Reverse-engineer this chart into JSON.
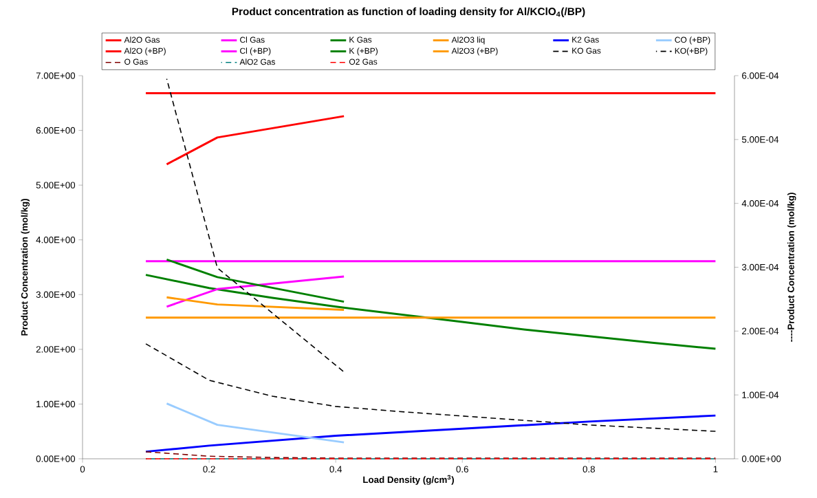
{
  "chart_data": {
    "type": "line",
    "title": "Product concentration as function of loading density for Al/KClO$_{4}$(/BP)",
    "xlabel": "Load Density (g/cm$^{3}$)",
    "ylabel": "Product Concentration (mol/kg)",
    "y2label": "----Product Concentration (mol/kg)",
    "xlim": [
      0,
      1.03
    ],
    "xticks": [
      0,
      0.2,
      0.4,
      0.6,
      0.8,
      1
    ],
    "ylim": [
      0,
      7
    ],
    "yticks": [
      {
        "value": 0,
        "label": "0.00E+00"
      },
      {
        "value": 1,
        "label": "1.00E+00"
      },
      {
        "value": 2,
        "label": "2.00E+00"
      },
      {
        "value": 3,
        "label": "3.00E+00"
      },
      {
        "value": 4,
        "label": "4.00E+00"
      },
      {
        "value": 5,
        "label": "5.00E+00"
      },
      {
        "value": 6,
        "label": "6.00E+00"
      },
      {
        "value": 7,
        "label": "7.00E+00"
      }
    ],
    "y2lim": [
      0,
      0.0006
    ],
    "y2ticks": [
      {
        "value": 0,
        "label": "0.00E+00"
      },
      {
        "value": 0.0001,
        "label": "1.00E-04"
      },
      {
        "value": 0.0002,
        "label": "2.00E-04"
      },
      {
        "value": 0.0003,
        "label": "3.00E-04"
      },
      {
        "value": 0.0004,
        "label": "4.00E-04"
      },
      {
        "value": 0.0005,
        "label": "5.00E-04"
      },
      {
        "value": 0.0006,
        "label": "6.00E-04"
      }
    ],
    "legend": "top",
    "marker": "none",
    "series": [
      {
        "name": "Al2O Gas",
        "color": "#ff0000",
        "line_style": "solid",
        "x": [
          0.1,
          1
        ],
        "values": [
          6.68,
          6.68
        ]
      },
      {
        "name": "Cl Gas",
        "color": "#ff00ff",
        "line_style": "solid",
        "x": [
          0.1,
          1
        ],
        "values": [
          3.61,
          3.61
        ]
      },
      {
        "name": "K Gas",
        "color": "#008000",
        "line_style": "solid",
        "x": [
          0.1,
          0.2,
          0.3,
          0.4,
          0.5,
          0.6,
          0.7,
          0.8,
          0.9,
          1
        ],
        "values": [
          3.36,
          3.12,
          2.94,
          2.78,
          2.64,
          2.5,
          2.36,
          2.24,
          2.12,
          2.01
        ]
      },
      {
        "name": "Al2O3 liq",
        "color": "#ff9900",
        "line_style": "solid",
        "x": [
          0.1,
          1
        ],
        "values": [
          2.58,
          2.58
        ]
      },
      {
        "name": "K2 Gas",
        "color": "#0000ff",
        "line_style": "solid",
        "x": [
          0.1,
          0.2,
          0.4,
          0.6,
          0.8,
          1
        ],
        "values": [
          0.13,
          0.24,
          0.42,
          0.55,
          0.68,
          0.79
        ]
      },
      {
        "name": "CO (+BP)",
        "color": "#99ccff",
        "line_style": "solid",
        "x": [
          0.133,
          0.213,
          0.413
        ],
        "values": [
          1.01,
          0.62,
          0.3
        ]
      },
      {
        "name": "Al2O (+BP)",
        "color": "#ff0000",
        "line_style": "solid",
        "x": [
          0.133,
          0.213,
          0.413
        ],
        "values": [
          5.38,
          5.87,
          6.26
        ]
      },
      {
        "name": "Cl (+BP)",
        "color": "#ff00ff",
        "line_style": "solid",
        "x": [
          0.133,
          0.213,
          0.413
        ],
        "values": [
          2.78,
          3.1,
          3.33
        ]
      },
      {
        "name": "K (+BP)",
        "color": "#008000",
        "line_style": "solid",
        "x": [
          0.133,
          0.213,
          0.413
        ],
        "values": [
          3.64,
          3.32,
          2.87
        ]
      },
      {
        "name": "Al2O3 (+BP)",
        "color": "#ff9900",
        "line_style": "solid",
        "x": [
          0.133,
          0.213,
          0.413
        ],
        "values": [
          2.95,
          2.82,
          2.72
        ]
      },
      {
        "name": "KO Gas",
        "color": "#000000",
        "line_style": "dashed",
        "axis": "y2",
        "x": [
          0.1,
          0.2,
          0.3,
          0.4,
          0.5,
          0.6,
          0.7,
          0.8,
          0.9,
          1
        ],
        "values": [
          0.00018,
          0.000123,
          9.8e-05,
          8.2e-05,
          7.4e-05,
          6.7e-05,
          6e-05,
          5.3e-05,
          4.8e-05,
          4.3e-05
        ]
      },
      {
        "name": "KO(+BP)",
        "color": "#000000",
        "line_style": "dashed",
        "axis": "y2",
        "x": [
          0.133,
          0.213,
          0.413
        ],
        "values": [
          0.000595,
          0.000299,
          0.000136
        ]
      },
      {
        "name": "O Gas",
        "color": "#800000",
        "line_style": "dashed",
        "axis": "y2",
        "x": [
          0.1,
          0.2,
          0.3,
          0.4,
          0.6,
          0.8,
          1
        ],
        "values": [
          1.1e-05,
          4e-06,
          2e-06,
          1e-06,
          1e-06,
          1e-06,
          1e-06
        ]
      },
      {
        "name": "AlO2 Gas",
        "color": "#008080",
        "line_style": "dashed",
        "axis": "y2",
        "x": [
          0.1,
          1
        ],
        "values": [
          0,
          0
        ]
      },
      {
        "name": "O2 Gas",
        "color": "#ff0000",
        "line_style": "dashed",
        "axis": "y2",
        "x": [
          0.1,
          1
        ],
        "values": [
          0,
          0
        ]
      }
    ]
  }
}
